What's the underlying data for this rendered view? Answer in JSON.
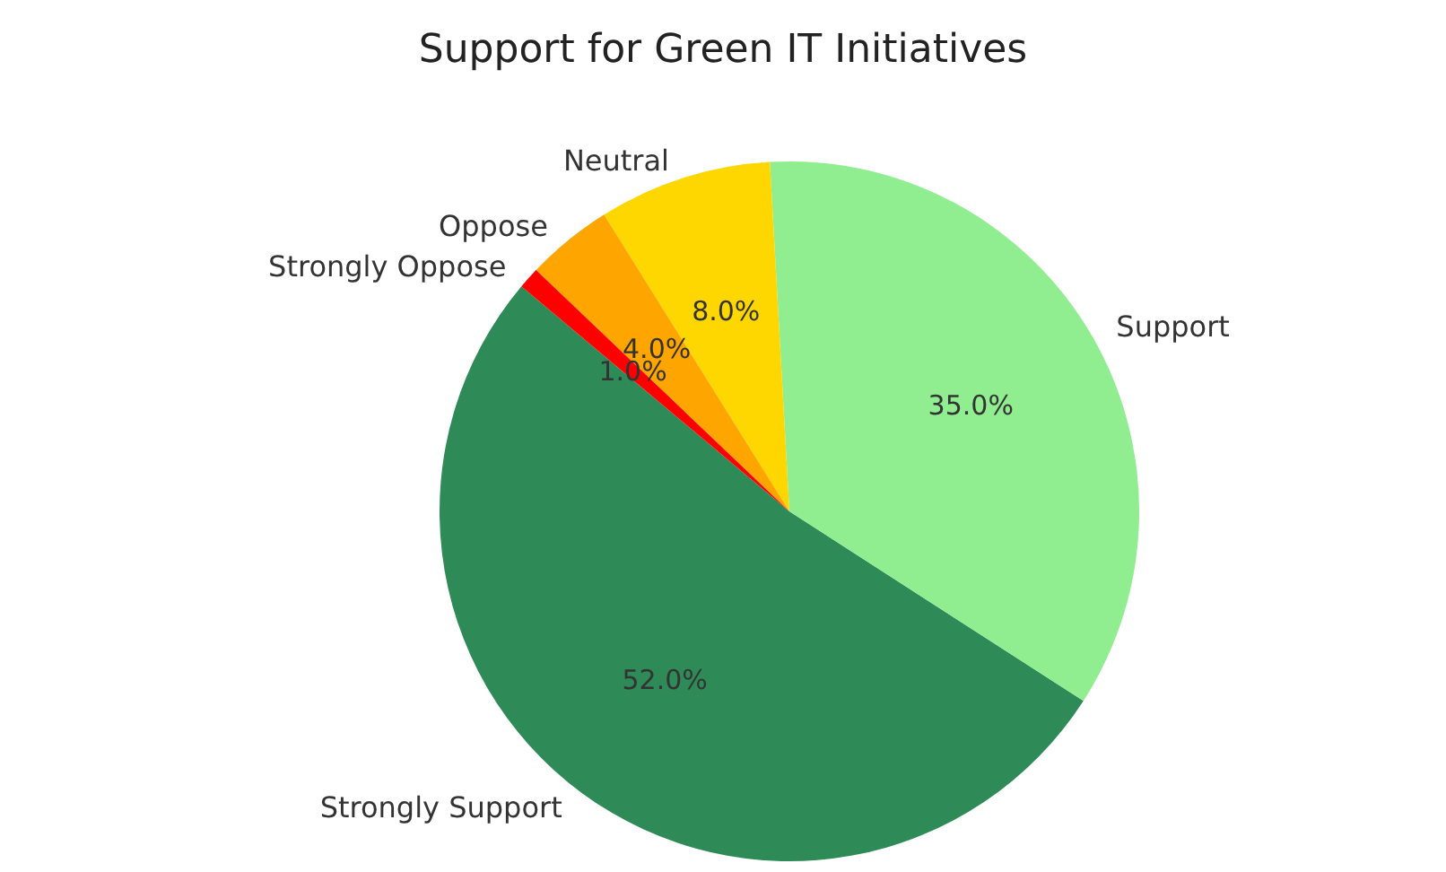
{
  "chart_data": {
    "type": "pie",
    "title": "Support for Green IT Initiatives",
    "categories": [
      "Strongly Support",
      "Support",
      "Neutral",
      "Oppose",
      "Strongly Oppose"
    ],
    "values": [
      52,
      35,
      8,
      4,
      1
    ],
    "colors": [
      "#2e8b57",
      "#90ee90",
      "#ffd700",
      "#ffa500",
      "#ff0000"
    ],
    "value_labels": [
      "52.0%",
      "35.0%",
      "8.0%",
      "4.0%",
      "1.0%"
    ],
    "legend": false
  }
}
